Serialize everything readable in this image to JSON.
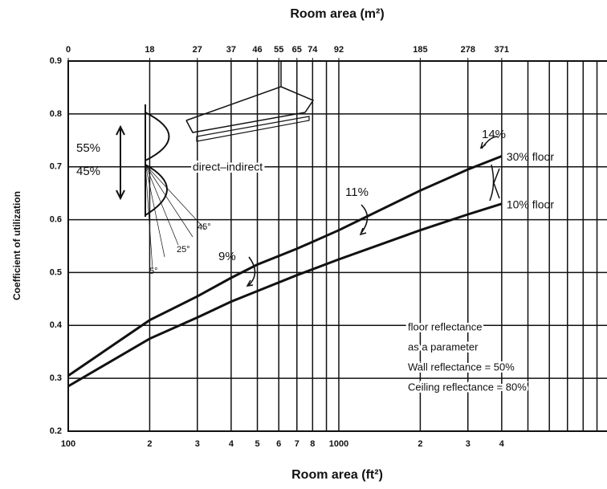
{
  "chart_data": {
    "type": "line",
    "title": "Room area (m²)",
    "x_label": "Room area (ft²)",
    "y_label": "Coefficient of utilization",
    "log_x": true,
    "grid": true,
    "xlim": [
      100,
      9800
    ],
    "ylim": [
      0.2,
      0.9
    ],
    "yticks": [
      0.2,
      0.3,
      0.4,
      0.5,
      0.6,
      0.7,
      0.8,
      0.9
    ],
    "xticks": [
      100,
      {
        "value": 200,
        "label": "2"
      },
      {
        "value": 300,
        "label": "3"
      },
      {
        "value": 400,
        "label": "4"
      },
      {
        "value": 500,
        "label": "5"
      },
      {
        "value": 600,
        "label": "6"
      },
      {
        "value": 700,
        "label": "7"
      },
      {
        "value": 800,
        "label": "8"
      },
      1000,
      {
        "value": 2000,
        "label": "2"
      },
      {
        "value": 3000,
        "label": "3"
      },
      {
        "value": 4000,
        "label": "4"
      }
    ],
    "x2ticks": [
      {
        "value": 100,
        "label": "0"
      },
      {
        "value": 200,
        "label": "18"
      },
      {
        "value": 300,
        "label": "27"
      },
      {
        "value": 400,
        "label": "37"
      },
      {
        "value": 500,
        "label": "46"
      },
      {
        "value": 600,
        "label": "55"
      },
      {
        "value": 700,
        "label": "65"
      },
      {
        "value": 800,
        "label": "74"
      },
      {
        "value": 1000,
        "label": "92"
      },
      {
        "value": 2000,
        "label": "185"
      },
      {
        "value": 3000,
        "label": "278"
      },
      {
        "value": 4000,
        "label": "371"
      }
    ],
    "xminor": [
      900,
      5000,
      6000,
      7000,
      8000,
      9000
    ],
    "x": [
      100,
      200,
      300,
      400,
      500,
      700,
      1000,
      2000,
      3000,
      4000
    ],
    "series": [
      {
        "name": "30% floor",
        "color": "#111111",
        "values": [
          0.305,
          0.41,
          0.455,
          0.49,
          0.515,
          0.545,
          0.58,
          0.655,
          0.695,
          0.72
        ]
      },
      {
        "name": "10% floor",
        "color": "#111111",
        "values": [
          0.285,
          0.375,
          0.415,
          0.445,
          0.465,
          0.495,
          0.525,
          0.58,
          0.61,
          0.63
        ]
      }
    ],
    "annotations": [
      "14%",
      "11%",
      "9%",
      "floor reflectance",
      "as a parameter",
      "Wall reflectance = 50%",
      "Ceiling reflectance = 80%",
      "55%",
      "45%",
      "direct–indirect",
      "45°",
      "25°",
      "5°"
    ]
  }
}
